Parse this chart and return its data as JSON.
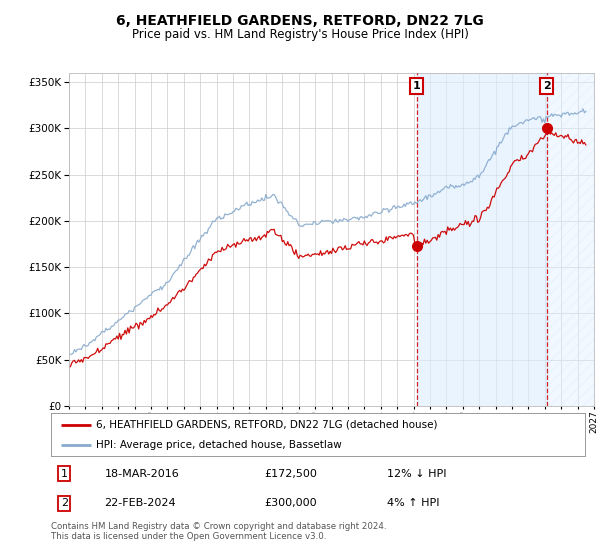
{
  "title": "6, HEATHFIELD GARDENS, RETFORD, DN22 7LG",
  "subtitle": "Price paid vs. HM Land Registry's House Price Index (HPI)",
  "legend_red": "6, HEATHFIELD GARDENS, RETFORD, DN22 7LG (detached house)",
  "legend_blue": "HPI: Average price, detached house, Bassetlaw",
  "annotation1_label": "1",
  "annotation1_date": "18-MAR-2016",
  "annotation1_price": "£172,500",
  "annotation1_hpi": "12% ↓ HPI",
  "annotation1_year": 2016.2,
  "annotation1_value": 172500,
  "annotation2_label": "2",
  "annotation2_date": "22-FEB-2024",
  "annotation2_price": "£300,000",
  "annotation2_hpi": "4% ↑ HPI",
  "annotation2_year": 2024.12,
  "annotation2_value": 300000,
  "footnote": "Contains HM Land Registry data © Crown copyright and database right 2024.\nThis data is licensed under the Open Government Licence v3.0.",
  "ylim": [
    0,
    360000
  ],
  "xlim_start": 1995.3,
  "xlim_end": 2027.0,
  "plot_bg_color": "#ffffff",
  "shade_color": "#ddeeff",
  "red_color": "#cc0000",
  "blue_color": "#88aacc",
  "grid_color": "#cccccc",
  "hatch_bg": "#ddeeff"
}
